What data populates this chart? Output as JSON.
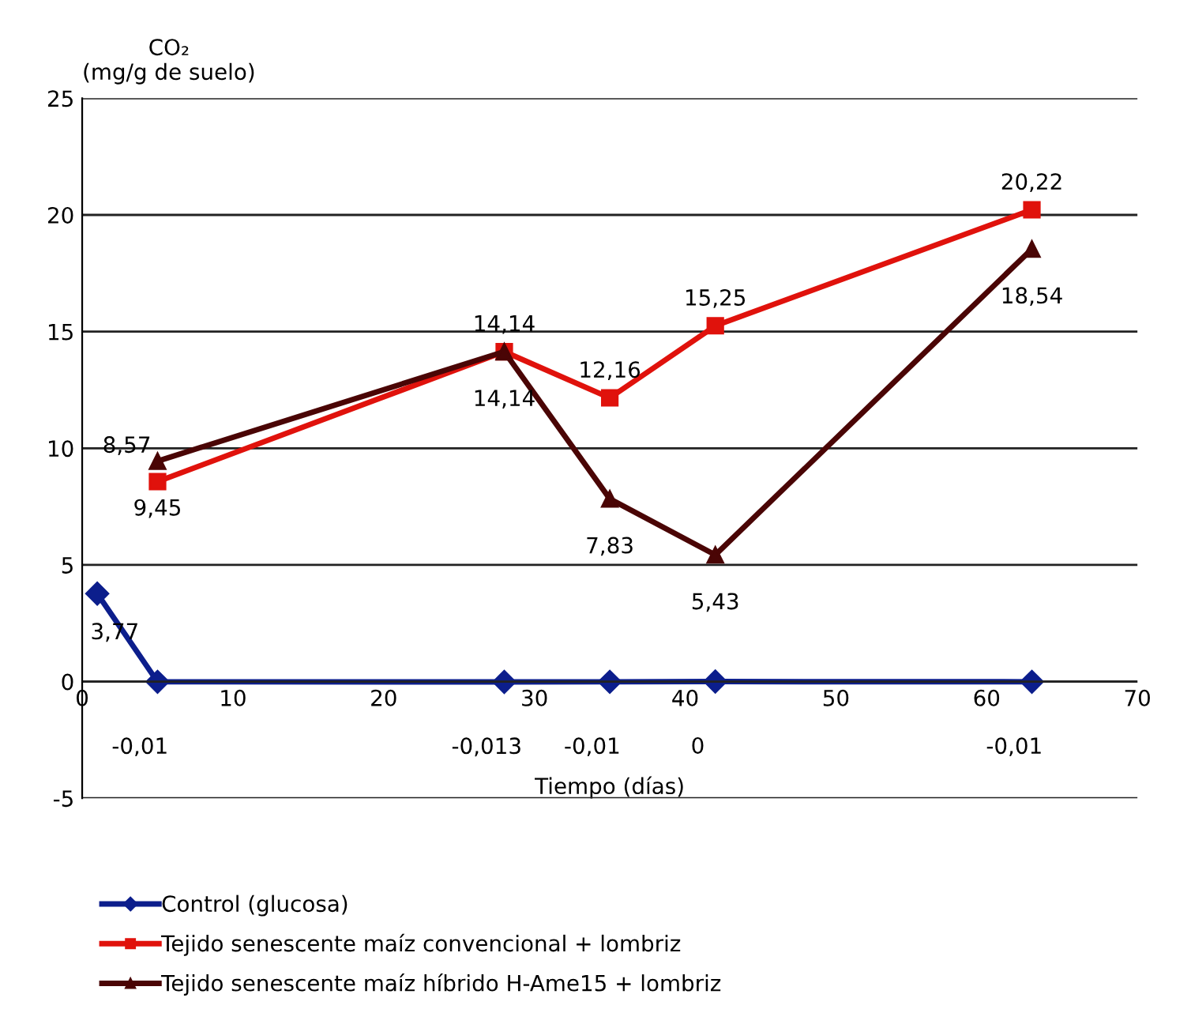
{
  "chart_data": {
    "type": "line",
    "xlabel": "Tiempo (días)",
    "ylabel": "CO₂\n(mg/g de suelo)",
    "xlim": [
      0,
      70
    ],
    "xticks": [
      0,
      10,
      20,
      30,
      40,
      50,
      60,
      70
    ],
    "ylim": [
      -5,
      25
    ],
    "yticks": [
      -5,
      0,
      5,
      10,
      15,
      20,
      25
    ],
    "grid": "y",
    "legend": "bottom",
    "line_style": "solid",
    "series": [
      {
        "name": "Control (glucosa)",
        "color": "#0c1e8c",
        "marker": "diamond",
        "x": [
          1,
          5,
          28,
          35,
          42,
          63
        ],
        "values": [
          3.77,
          -0.01,
          -0.013,
          -0.01,
          0,
          -0.01
        ],
        "value_labels": [
          "3,77",
          "-0,01",
          "-0,013",
          "-0,01",
          "0",
          "-0,01"
        ]
      },
      {
        "name": "Tejido senescente maíz convencional + lombriz",
        "color": "#e0120c",
        "marker": "square",
        "x": [
          5,
          28,
          35,
          42,
          63
        ],
        "values": [
          8.57,
          14.14,
          12.16,
          15.25,
          20.22
        ],
        "value_labels": [
          "8,57",
          "14,14",
          "12,16",
          "15,25",
          "20,22"
        ]
      },
      {
        "name": "Tejido senescente maíz híbrido H-Ame15 + lombriz",
        "color": "#4a0505",
        "marker": "triangle",
        "x": [
          5,
          28,
          35,
          42,
          63
        ],
        "values": [
          9.45,
          14.14,
          7.83,
          5.43,
          18.54
        ],
        "value_labels": [
          "9,45",
          "14,14",
          "7,83",
          "5,43",
          "18,54"
        ]
      }
    ]
  }
}
